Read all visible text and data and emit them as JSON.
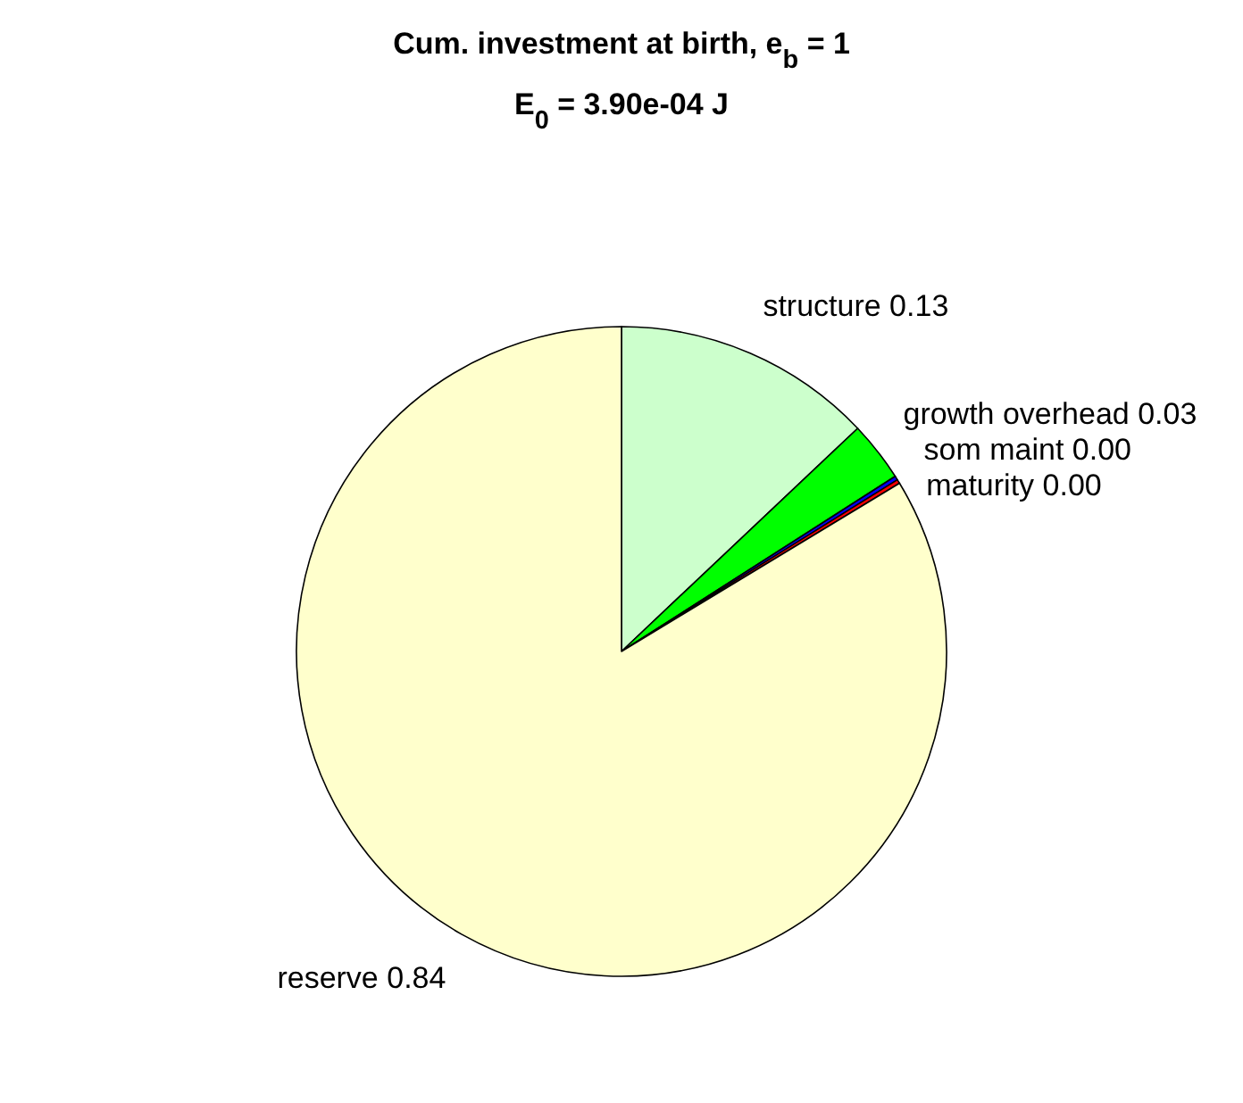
{
  "chart_data": {
    "type": "pie",
    "title": "Cum. investment at birth, e$_{b}$ = 1",
    "subtitle": "E$_{0}$ = 3.90e-04 J",
    "categories": [
      "structure",
      "growth overhead",
      "som maint",
      "maturity",
      "reserve"
    ],
    "values": [
      0.13,
      0.03,
      0.002,
      0.002,
      0.84
    ],
    "colors": [
      "#ccffcc",
      "#00ff00",
      "#0000ff",
      "#ff0000",
      "#ffffcc"
    ],
    "value_labels": [
      "0.13",
      "0.03",
      "0.00",
      "0.00",
      "0.84"
    ]
  }
}
